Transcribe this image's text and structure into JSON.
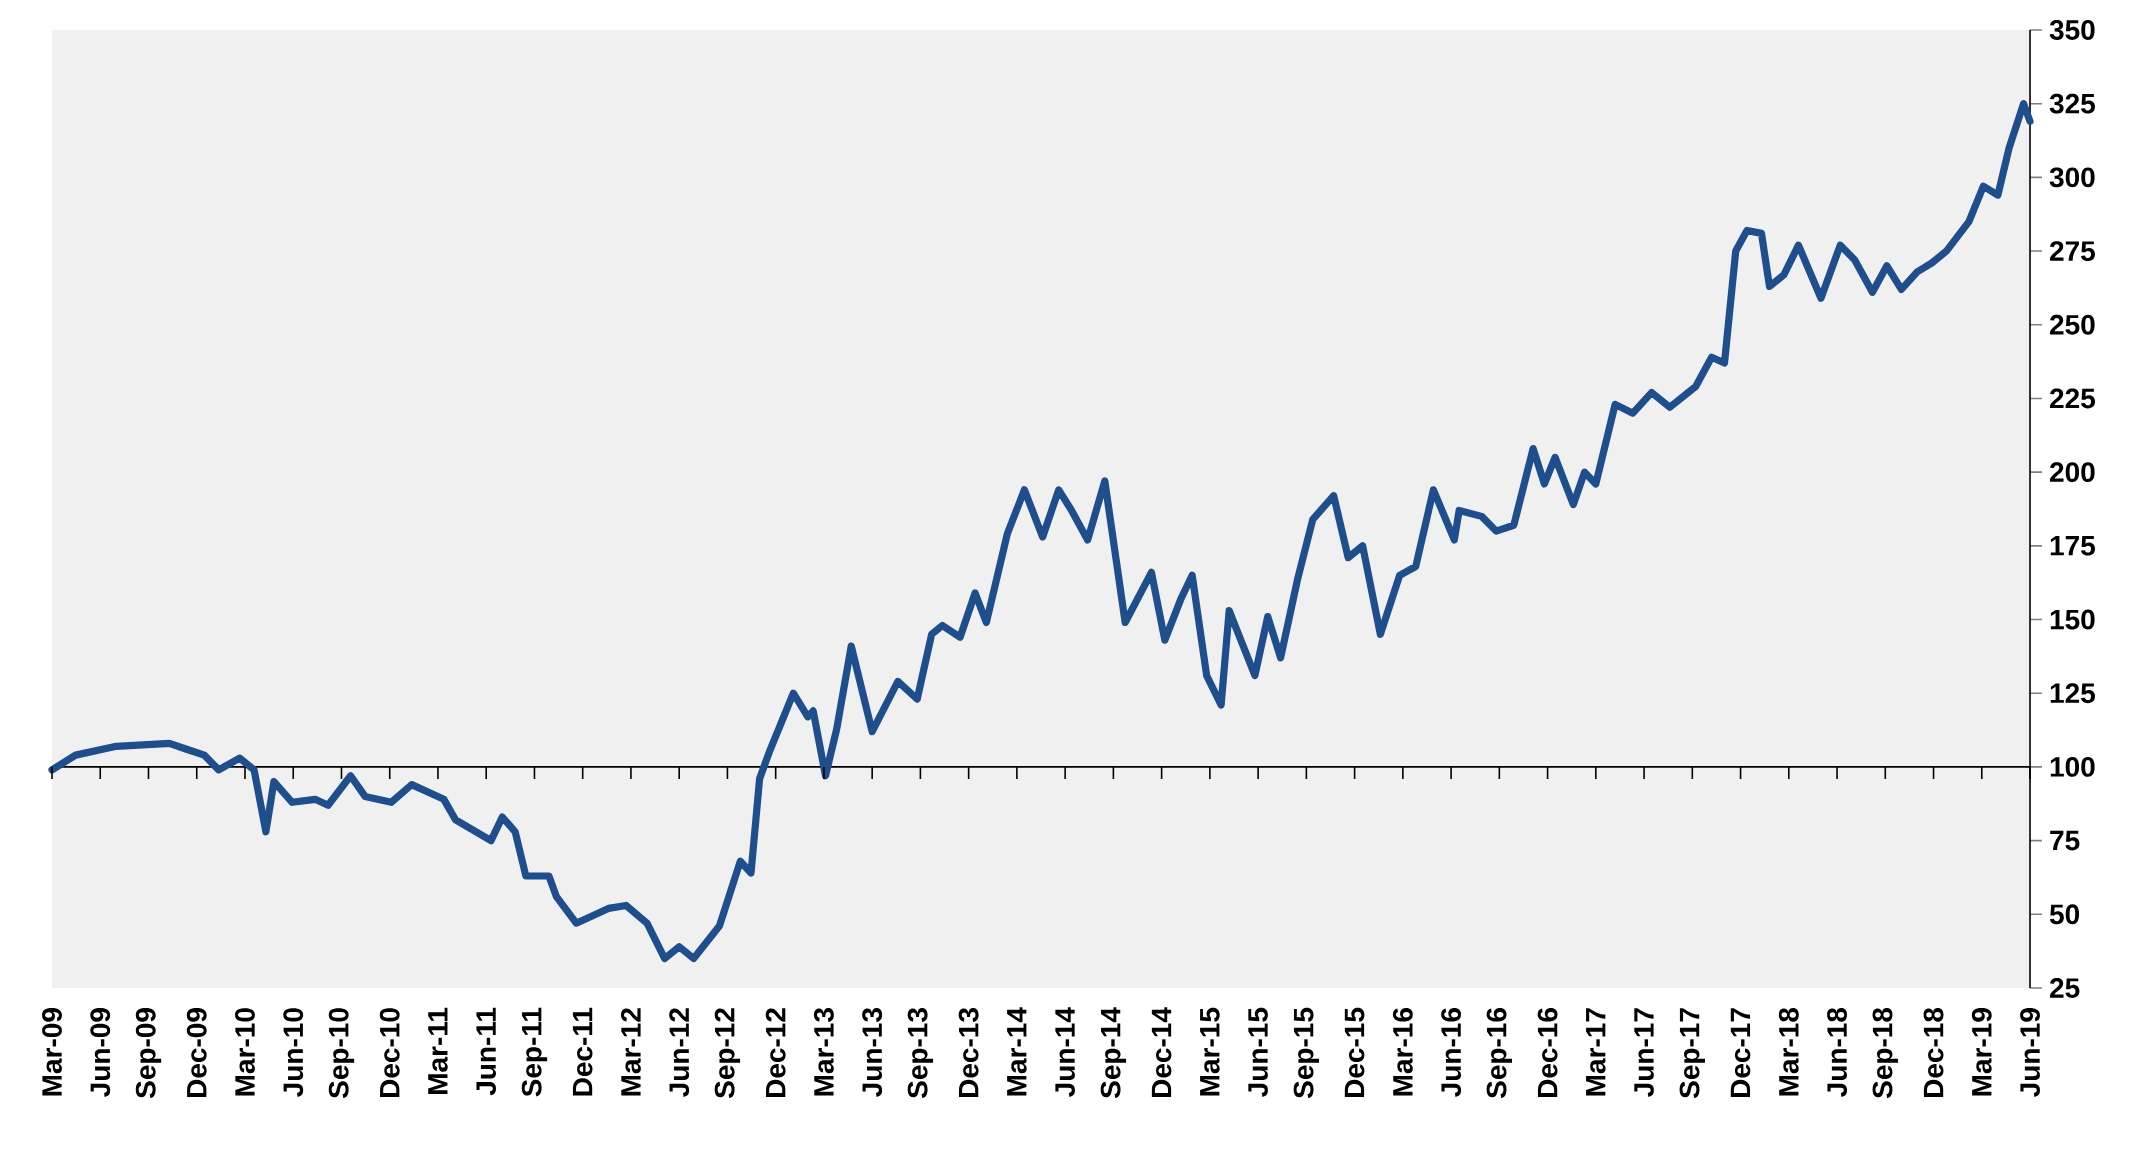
{
  "chart_data": {
    "type": "line",
    "x": [
      "2009-03-01",
      "2009-04-15",
      "2009-07-01",
      "2009-10-10",
      "2009-11-12",
      "2009-12-15",
      "2010-01-12",
      "2010-02-21",
      "2010-03-18",
      "2010-04-10",
      "2010-04-25",
      "2010-05-29",
      "2010-07-12",
      "2010-08-06",
      "2010-09-18",
      "2010-10-15",
      "2010-12-04",
      "2011-01-12",
      "2011-03-12",
      "2011-04-04",
      "2011-06-10",
      "2011-07-01",
      "2011-07-25",
      "2011-08-15",
      "2011-09-28",
      "2011-10-12",
      "2011-11-19",
      "2012-01-19",
      "2012-02-22",
      "2012-04-01",
      "2012-05-04",
      "2012-06-01",
      "2012-06-28",
      "2012-08-16",
      "2012-09-25",
      "2012-10-15",
      "2012-11-01",
      "2012-11-19",
      "2013-01-04",
      "2013-02-01",
      "2013-02-11",
      "2013-03-04",
      "2013-03-25",
      "2013-04-22",
      "2013-06-01",
      "2013-07-19",
      "2013-08-25",
      "2013-09-22",
      "2013-10-12",
      "2013-11-15",
      "2013-12-13",
      "2014-01-04",
      "2014-02-13",
      "2014-03-15",
      "2014-04-19",
      "2014-05-19",
      "2014-06-13",
      "2014-07-13",
      "2014-08-15",
      "2014-09-23",
      "2014-11-12",
      "2014-12-07",
      "2015-01-07",
      "2015-01-28",
      "2015-02-25",
      "2015-03-22",
      "2015-04-07",
      "2015-05-25",
      "2015-06-19",
      "2015-07-13",
      "2015-08-15",
      "2015-09-13",
      "2015-10-22",
      "2015-11-19",
      "2015-12-16",
      "2016-01-19",
      "2016-02-25",
      "2016-03-25",
      "2016-04-28",
      "2016-06-07",
      "2016-06-16",
      "2016-07-28",
      "2016-08-25",
      "2016-09-28",
      "2016-11-04",
      "2016-11-25",
      "2016-12-15",
      "2017-01-19",
      "2017-02-10",
      "2017-03-01",
      "2017-04-07",
      "2017-05-10",
      "2017-06-15",
      "2017-07-19",
      "2017-09-07",
      "2017-10-07",
      "2017-11-01",
      "2017-11-22",
      "2017-12-13",
      "2018-01-10",
      "2018-01-25",
      "2018-02-22",
      "2018-03-19",
      "2018-05-01",
      "2018-06-07",
      "2018-07-04",
      "2018-08-07",
      "2018-09-04",
      "2018-10-01",
      "2018-11-01",
      "2018-11-28",
      "2018-12-25",
      "2019-02-07",
      "2019-03-04",
      "2019-04-01",
      "2019-04-22",
      "2019-05-19",
      "2019-06-01"
    ],
    "values": [
      99,
      104,
      107,
      108,
      106,
      104,
      99,
      103,
      99,
      78,
      95,
      88,
      89,
      87,
      97,
      90,
      88,
      94,
      89,
      82,
      75,
      83,
      78,
      63,
      63,
      56,
      47,
      52,
      53,
      47,
      35,
      39,
      35,
      46,
      68,
      64,
      96,
      105,
      125,
      117,
      119,
      97,
      113,
      141,
      112,
      129,
      123,
      145,
      148,
      144,
      159,
      149,
      179,
      194,
      178,
      194,
      187,
      177,
      197,
      149,
      166,
      143,
      157,
      165,
      131,
      121,
      153,
      131,
      151,
      137,
      164,
      184,
      192,
      171,
      175,
      145,
      165,
      168,
      194,
      177,
      187,
      185,
      180,
      182,
      208,
      196,
      205,
      189,
      200,
      196,
      223,
      220,
      227,
      222,
      229,
      239,
      237,
      275,
      282,
      281,
      263,
      267,
      277,
      259,
      277,
      272,
      261,
      270,
      262,
      268,
      271,
      275,
      285,
      297,
      294,
      310,
      325,
      319
    ],
    "color": "#1f4e8c",
    "xlim": [
      "2009-03-01",
      "2019-06-01"
    ],
    "xticks": [
      {
        "value": "2009-03-01",
        "label": "Mar-09"
      },
      {
        "value": "2009-06-01",
        "label": "Jun-09"
      },
      {
        "value": "2009-09-01",
        "label": "Sep-09"
      },
      {
        "value": "2009-12-01",
        "label": "Dec-09"
      },
      {
        "value": "2010-03-01",
        "label": "Mar-10"
      },
      {
        "value": "2010-06-01",
        "label": "Jun-10"
      },
      {
        "value": "2010-09-01",
        "label": "Sep-10"
      },
      {
        "value": "2010-12-01",
        "label": "Dec-10"
      },
      {
        "value": "2011-03-01",
        "label": "Mar-11"
      },
      {
        "value": "2011-06-01",
        "label": "Jun-11"
      },
      {
        "value": "2011-09-01",
        "label": "Sep-11"
      },
      {
        "value": "2011-12-01",
        "label": "Dec-11"
      },
      {
        "value": "2012-03-01",
        "label": "Mar-12"
      },
      {
        "value": "2012-06-01",
        "label": "Jun-12"
      },
      {
        "value": "2012-09-01",
        "label": "Sep-12"
      },
      {
        "value": "2012-12-01",
        "label": "Dec-12"
      },
      {
        "value": "2013-03-01",
        "label": "Mar-13"
      },
      {
        "value": "2013-06-01",
        "label": "Jun-13"
      },
      {
        "value": "2013-09-01",
        "label": "Sep-13"
      },
      {
        "value": "2013-12-01",
        "label": "Dec-13"
      },
      {
        "value": "2014-03-01",
        "label": "Mar-14"
      },
      {
        "value": "2014-06-01",
        "label": "Jun-14"
      },
      {
        "value": "2014-09-01",
        "label": "Sep-14"
      },
      {
        "value": "2014-12-01",
        "label": "Dec-14"
      },
      {
        "value": "2015-03-01",
        "label": "Mar-15"
      },
      {
        "value": "2015-06-01",
        "label": "Jun-15"
      },
      {
        "value": "2015-09-01",
        "label": "Sep-15"
      },
      {
        "value": "2015-12-01",
        "label": "Dec-15"
      },
      {
        "value": "2016-03-01",
        "label": "Mar-16"
      },
      {
        "value": "2016-06-01",
        "label": "Jun-16"
      },
      {
        "value": "2016-09-01",
        "label": "Sep-16"
      },
      {
        "value": "2016-12-01",
        "label": "Dec-16"
      },
      {
        "value": "2017-03-01",
        "label": "Mar-17"
      },
      {
        "value": "2017-06-01",
        "label": "Jun-17"
      },
      {
        "value": "2017-09-01",
        "label": "Sep-17"
      },
      {
        "value": "2017-12-01",
        "label": "Dec-17"
      },
      {
        "value": "2018-03-01",
        "label": "Mar-18"
      },
      {
        "value": "2018-06-01",
        "label": "Jun-18"
      },
      {
        "value": "2018-09-01",
        "label": "Sep-18"
      },
      {
        "value": "2018-12-01",
        "label": "Dec-18"
      },
      {
        "value": "2019-03-01",
        "label": "Mar-19"
      },
      {
        "value": "2019-06-01",
        "label": "Jun-19"
      }
    ],
    "ylim": [
      25,
      350
    ],
    "yticks": [
      25,
      50,
      75,
      100,
      125,
      150,
      175,
      200,
      225,
      250,
      275,
      300,
      325,
      350
    ],
    "ref_lines": [
      {
        "axis": "y",
        "value": 100,
        "color": "#000000"
      }
    ]
  }
}
